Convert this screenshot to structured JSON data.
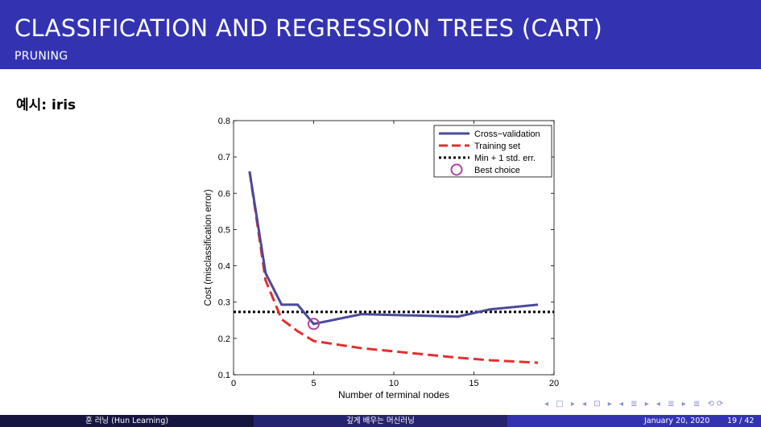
{
  "slide": {
    "title": "CLASSIFICATION AND REGRESSION TREES (CART)",
    "subtitle": "PRUNING",
    "heading": "예시: iris"
  },
  "nav": {
    "symbols": "◂ □ ▸ ◂ ⊡ ▸ ◂ ≣ ▸ ◂ ≣ ▸   ≣   ⟲⟳"
  },
  "footer": {
    "author": "훈 러닝 (Hun Learning)",
    "course": "깊게 배우는 머신러닝",
    "date": "January 20, 2020",
    "page": "19 / 42"
  },
  "chart_data": {
    "type": "line",
    "xlabel": "Number of terminal nodes",
    "ylabel": "Cost (misclassification error)",
    "xlim": [
      0,
      20
    ],
    "ylim": [
      0.1,
      0.8
    ],
    "xticks": [
      0,
      5,
      10,
      15,
      20
    ],
    "yticks": [
      0.1,
      0.2,
      0.3,
      0.4,
      0.5,
      0.6,
      0.7,
      0.8
    ],
    "legend_position": "top-right",
    "series": [
      {
        "name": "Cross−validation",
        "color": "#4a4a9a",
        "x": [
          1,
          2,
          3,
          4,
          5,
          8,
          14,
          16,
          19
        ],
        "y": [
          0.66,
          0.38,
          0.293,
          0.293,
          0.24,
          0.267,
          0.26,
          0.28,
          0.293
        ]
      },
      {
        "name": "Training set",
        "color": "#e03030",
        "x": [
          1,
          2,
          3,
          4,
          5,
          8,
          14,
          16,
          19
        ],
        "y": [
          0.66,
          0.36,
          0.253,
          0.22,
          0.193,
          0.173,
          0.147,
          0.14,
          0.133
        ]
      },
      {
        "name": "Min + 1 std. err.",
        "color": "#000000",
        "y_constant": 0.273
      }
    ],
    "best_choice": {
      "name": "Best choice",
      "x": 5,
      "y": 0.24,
      "color": "#b040a0"
    }
  }
}
